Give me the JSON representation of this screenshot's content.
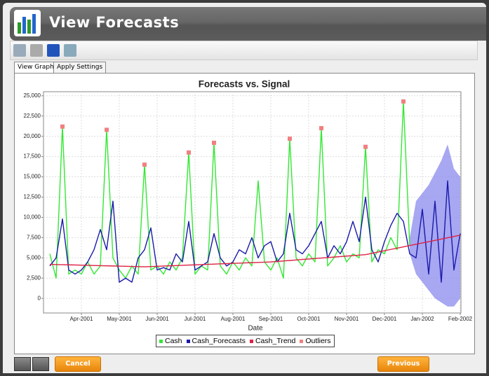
{
  "window": {
    "title": "View Forecasts"
  },
  "tabs": [
    "View Graph",
    "Apply Settings"
  ],
  "buttons": {
    "cancel": "Cancel",
    "previous": "Previous"
  },
  "chart_data": {
    "type": "line",
    "title": "Forecasts vs. Signal",
    "x_label": "Date",
    "categories": [
      null,
      null,
      null,
      null,
      null,
      "Apr-2001",
      null,
      null,
      null,
      null,
      null,
      "May-2001",
      null,
      null,
      null,
      null,
      null,
      "Jun-2001",
      null,
      null,
      null,
      null,
      null,
      "Jul-2001",
      null,
      null,
      null,
      null,
      null,
      "Aug-2001",
      null,
      null,
      null,
      null,
      null,
      "Sep-2001",
      null,
      null,
      null,
      null,
      null,
      "Oct-2001",
      null,
      null,
      null,
      null,
      null,
      "Nov-2001",
      null,
      null,
      null,
      null,
      null,
      "Dec-2001",
      null,
      null,
      null,
      null,
      null,
      "Jan-2002",
      null,
      null,
      null,
      null,
      null,
      "Feb-2002"
    ],
    "ylim": [
      -1800,
      25500
    ],
    "yticks": [
      0,
      {
        "value": 2500,
        "label": "2,500"
      },
      {
        "value": 5000,
        "label": "5,000"
      },
      {
        "value": 7500,
        "label": "7,500"
      },
      {
        "value": 10000,
        "label": "10,000"
      },
      {
        "value": 12500,
        "label": "12,500"
      },
      {
        "value": 15000,
        "label": "15,000"
      },
      {
        "value": 17500,
        "label": "17,500"
      },
      {
        "value": 20000,
        "label": "20,000"
      },
      {
        "value": 22500,
        "label": "22,500"
      },
      {
        "value": 25000,
        "label": "25,000"
      }
    ],
    "grid": true,
    "legend": "bottom",
    "interval": {
      "color": "#8a8aee",
      "lower": [
        null,
        null,
        null,
        null,
        null,
        null,
        null,
        null,
        null,
        null,
        null,
        null,
        null,
        null,
        null,
        null,
        null,
        null,
        null,
        null,
        null,
        null,
        null,
        null,
        null,
        null,
        null,
        null,
        null,
        null,
        null,
        null,
        null,
        null,
        null,
        null,
        null,
        null,
        null,
        null,
        null,
        null,
        null,
        null,
        null,
        null,
        null,
        null,
        null,
        null,
        null,
        null,
        null,
        null,
        null,
        null,
        null,
        5500,
        3000,
        2000,
        1000,
        0,
        -500,
        -1000,
        -1000,
        0
      ],
      "upper": [
        null,
        null,
        null,
        null,
        null,
        null,
        null,
        null,
        null,
        null,
        null,
        null,
        null,
        null,
        null,
        null,
        null,
        null,
        null,
        null,
        null,
        null,
        null,
        null,
        null,
        null,
        null,
        null,
        null,
        null,
        null,
        null,
        null,
        null,
        null,
        null,
        null,
        null,
        null,
        null,
        null,
        null,
        null,
        null,
        null,
        null,
        null,
        null,
        null,
        null,
        null,
        null,
        null,
        null,
        null,
        null,
        null,
        7500,
        12000,
        13000,
        14000,
        15500,
        17000,
        19000,
        16000,
        15000
      ]
    },
    "series": [
      {
        "name": "Cash",
        "color": "#33e833",
        "style": "line",
        "values": [
          5500,
          2500,
          21200,
          3000,
          3500,
          3000,
          4500,
          3000,
          4000,
          20800,
          5000,
          3500,
          2500,
          4000,
          3000,
          16500,
          3500,
          4000,
          3000,
          4500,
          3500,
          5000,
          18000,
          3000,
          4000,
          3500,
          19200,
          4000,
          3000,
          4500,
          3500,
          5000,
          4000,
          14500,
          4500,
          3500,
          5000,
          2500,
          19700,
          5000,
          4000,
          5500,
          4500,
          21000,
          4000,
          5000,
          6500,
          4500,
          5500,
          5000,
          18700,
          4500,
          6000,
          5500,
          7500,
          6000,
          24300,
          6500,
          null,
          null,
          null,
          null,
          null,
          null,
          null,
          null
        ]
      },
      {
        "name": "Cash_Forecasts",
        "color": "#1a1aaa",
        "style": "line",
        "values": [
          4000,
          5000,
          9800,
          3500,
          3000,
          3500,
          4500,
          6000,
          8500,
          6000,
          12000,
          2000,
          2500,
          2000,
          5000,
          6000,
          8700,
          3500,
          3800,
          3500,
          5500,
          4500,
          9500,
          3500,
          4000,
          4500,
          8000,
          5000,
          4000,
          4500,
          6000,
          5500,
          7500,
          5000,
          6500,
          7000,
          4500,
          5500,
          10500,
          6000,
          5500,
          6500,
          8000,
          9500,
          5000,
          6500,
          5500,
          7000,
          9500,
          7000,
          12500,
          6000,
          4500,
          7000,
          9000,
          10500,
          9500,
          5500,
          5000,
          11000,
          3000,
          12000,
          2000,
          14500,
          3500,
          8000
        ]
      },
      {
        "name": "Cash_Trend",
        "color": "#dd2244",
        "style": "line",
        "values": [
          4200,
          4180,
          4160,
          4140,
          4120,
          4100,
          4080,
          4060,
          4040,
          4020,
          4000,
          3980,
          3960,
          3940,
          3920,
          3900,
          3930,
          3960,
          3990,
          4020,
          4050,
          4080,
          4110,
          4140,
          4170,
          4200,
          4230,
          4260,
          4290,
          4320,
          4350,
          4380,
          4410,
          4440,
          4470,
          4500,
          4560,
          4620,
          4680,
          4740,
          4800,
          4860,
          4920,
          4980,
          5040,
          5100,
          5160,
          5220,
          5280,
          5340,
          5400,
          5560,
          5720,
          5880,
          6040,
          6200,
          6360,
          6520,
          6680,
          6840,
          7000,
          7160,
          7320,
          7480,
          7640,
          7800
        ]
      },
      {
        "name": "Outliers",
        "color": "#f08080",
        "style": "marker",
        "values": [
          null,
          null,
          21200,
          null,
          null,
          null,
          null,
          null,
          null,
          20800,
          null,
          null,
          null,
          null,
          null,
          16500,
          null,
          null,
          null,
          null,
          null,
          null,
          18000,
          null,
          null,
          null,
          19200,
          null,
          null,
          null,
          null,
          null,
          null,
          null,
          null,
          null,
          null,
          null,
          19700,
          null,
          null,
          null,
          null,
          21000,
          null,
          null,
          null,
          null,
          null,
          null,
          18700,
          null,
          null,
          null,
          null,
          null,
          24300,
          null,
          null,
          null,
          null,
          null,
          null,
          null,
          null,
          null
        ]
      }
    ]
  }
}
